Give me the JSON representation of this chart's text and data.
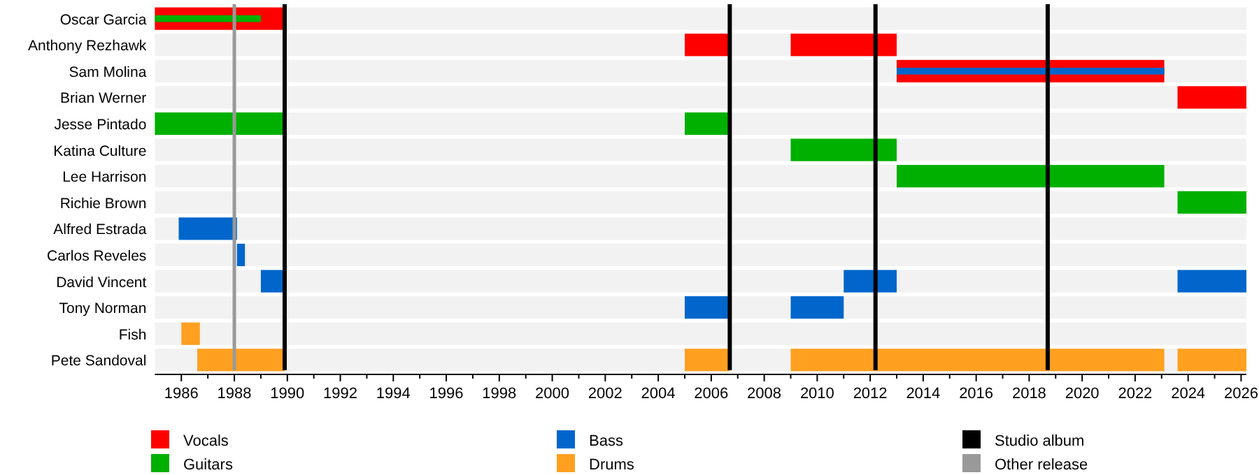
{
  "chart_data": {
    "type": "bar",
    "orientation": "horizontal",
    "legend": "bottom",
    "categories": [
      "Oscar Garcia",
      "Anthony Rezhawk",
      "Sam Molina",
      "Brian Werner",
      "Jesse Pintado",
      "Katina Culture",
      "Lee Harrison",
      "Richie Brown",
      "Alfred Estrada",
      "Carlos Reveles",
      "David Vincent",
      "Tony Norman",
      "Fish",
      "Pete Sandoval"
    ],
    "xlim": [
      1985,
      2026.2
    ],
    "xticks": [
      1986,
      1988,
      1990,
      1992,
      1994,
      1996,
      1998,
      2000,
      2002,
      2004,
      2006,
      2008,
      2010,
      2012,
      2014,
      2016,
      2018,
      2020,
      2022,
      2024,
      2026
    ],
    "series": [
      {
        "name": "Vocals",
        "color": "#ff0000",
        "values": [
          4.9,
          1.7,
          10.1,
          2.6,
          null,
          null,
          null,
          null,
          null,
          null,
          null,
          null,
          null,
          null
        ],
        "base": [
          1985,
          2005,
          2013,
          2023.6,
          null,
          null,
          null,
          null,
          null,
          null,
          null,
          null,
          null,
          null
        ]
      },
      {
        "color": "#ff0000",
        "values": [
          null,
          4,
          null,
          null,
          null,
          null,
          null,
          null,
          null,
          null,
          null,
          null,
          null,
          null
        ],
        "base": [
          null,
          2009,
          null,
          null,
          null,
          null,
          null,
          null,
          null,
          null,
          null,
          null,
          null,
          null
        ]
      },
      {
        "name": "Guitars",
        "color": "#00b000",
        "values": [
          null,
          null,
          null,
          null,
          4.9,
          4,
          10.1,
          2.6,
          null,
          null,
          null,
          null,
          null,
          null
        ],
        "base": [
          null,
          null,
          null,
          null,
          1985,
          2009,
          2013,
          2023.6,
          null,
          null,
          null,
          null,
          null,
          null
        ]
      },
      {
        "color": "#00b000",
        "values": [
          null,
          null,
          null,
          null,
          1.7,
          null,
          null,
          null,
          null,
          null,
          null,
          null,
          null,
          null
        ],
        "base": [
          null,
          null,
          null,
          null,
          2005,
          null,
          null,
          null,
          null,
          null,
          null,
          null,
          null,
          null
        ]
      },
      {
        "color": "#00b000",
        "values": [
          4,
          null,
          null,
          null,
          null,
          null,
          null,
          null,
          null,
          null,
          null,
          null,
          null,
          null
        ],
        "base": [
          1985,
          null,
          null,
          null,
          null,
          null,
          null,
          null,
          null,
          null,
          null,
          null,
          null,
          null
        ]
      },
      {
        "name": "Bass",
        "color": "#0066cc",
        "values": [
          null,
          null,
          null,
          null,
          null,
          null,
          null,
          null,
          2.2,
          0.3,
          0.9,
          1.7,
          null,
          null
        ],
        "base": [
          null,
          null,
          null,
          null,
          null,
          null,
          null,
          null,
          1985.9,
          1988.1,
          1989,
          2005,
          null,
          null
        ]
      },
      {
        "color": "#0066cc",
        "values": [
          null,
          null,
          null,
          null,
          null,
          null,
          null,
          null,
          null,
          null,
          2,
          2,
          null,
          null
        ],
        "base": [
          null,
          null,
          null,
          null,
          null,
          null,
          null,
          null,
          null,
          null,
          2011,
          2009,
          null,
          null
        ]
      },
      {
        "color": "#0066cc",
        "values": [
          null,
          null,
          null,
          null,
          null,
          null,
          null,
          null,
          null,
          null,
          2.6,
          null,
          null,
          null
        ],
        "base": [
          null,
          null,
          null,
          null,
          null,
          null,
          null,
          null,
          null,
          null,
          2023.6,
          null,
          null,
          null
        ]
      },
      {
        "color": "#0066cc",
        "values": [
          null,
          null,
          10.1,
          null,
          null,
          null,
          null,
          null,
          null,
          null,
          null,
          null,
          null,
          null
        ],
        "base": [
          null,
          null,
          2013,
          null,
          null,
          null,
          null,
          null,
          null,
          null,
          null,
          null,
          null,
          null
        ]
      },
      {
        "name": "Drums",
        "color": "#ffa020",
        "values": [
          null,
          null,
          null,
          null,
          null,
          null,
          null,
          null,
          null,
          null,
          null,
          null,
          0.7,
          3.3
        ],
        "base": [
          null,
          null,
          null,
          null,
          null,
          null,
          null,
          null,
          null,
          null,
          null,
          null,
          1986,
          1986.6
        ]
      },
      {
        "color": "#ffa020",
        "values": [
          null,
          null,
          null,
          null,
          null,
          null,
          null,
          null,
          null,
          null,
          null,
          null,
          null,
          1.7
        ],
        "base": [
          null,
          null,
          null,
          null,
          null,
          null,
          null,
          null,
          null,
          null,
          null,
          null,
          null,
          2005
        ]
      },
      {
        "color": "#ffa020",
        "values": [
          null,
          null,
          null,
          null,
          null,
          null,
          null,
          null,
          null,
          null,
          null,
          null,
          null,
          14.1
        ],
        "base": [
          null,
          null,
          null,
          null,
          null,
          null,
          null,
          null,
          null,
          null,
          null,
          null,
          null,
          2009
        ]
      },
      {
        "color": "#ffa020",
        "values": [
          null,
          null,
          null,
          null,
          null,
          null,
          null,
          null,
          null,
          null,
          null,
          null,
          null,
          2.6
        ],
        "base": [
          null,
          null,
          null,
          null,
          null,
          null,
          null,
          null,
          null,
          null,
          null,
          null,
          null,
          2023.6
        ]
      }
    ],
    "ref_lines": [
      {
        "axis": "x",
        "value": 1989.9,
        "label": "Studio album",
        "color": "#000000"
      },
      {
        "axis": "x",
        "value": 2006.7,
        "color": "#000000"
      },
      {
        "axis": "x",
        "value": 2012.2,
        "color": "#000000"
      },
      {
        "axis": "x",
        "value": 2018.7,
        "color": "#000000"
      },
      {
        "axis": "x",
        "value": 1988,
        "label": "Other release",
        "color": "#999999"
      }
    ]
  }
}
